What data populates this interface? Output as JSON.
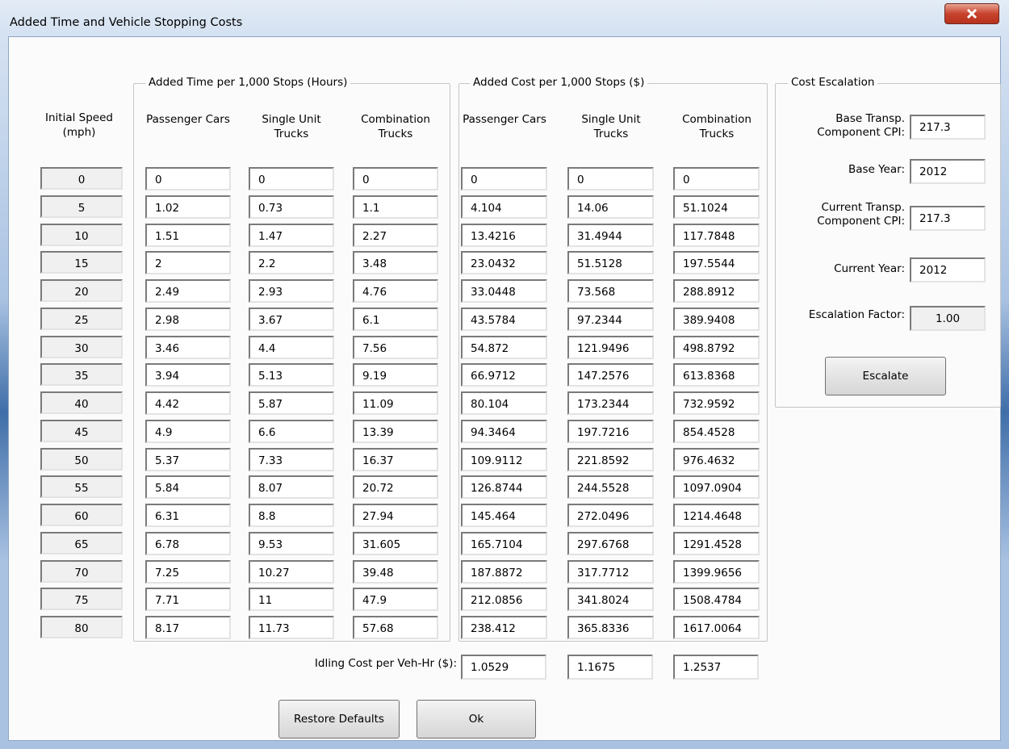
{
  "window": {
    "title": "Added Time and Vehicle Stopping Costs"
  },
  "speed_header": "Initial Speed (mph)",
  "time_group": {
    "label": "Added Time per 1,000 Stops (Hours)",
    "columns": [
      "Passenger Cars",
      "Single Unit Trucks",
      "Combination Trucks"
    ]
  },
  "cost_group": {
    "label": "Added Cost per 1,000 Stops ($)",
    "columns": [
      "Passenger Cars",
      "Single Unit Trucks",
      "Combination Trucks"
    ]
  },
  "rows": [
    {
      "speed": "0",
      "time": [
        "0",
        "0",
        "0"
      ],
      "cost": [
        "0",
        "0",
        "0"
      ]
    },
    {
      "speed": "5",
      "time": [
        "1.02",
        "0.73",
        "1.1"
      ],
      "cost": [
        "4.104",
        "14.06",
        "51.1024"
      ]
    },
    {
      "speed": "10",
      "time": [
        "1.51",
        "1.47",
        "2.27"
      ],
      "cost": [
        "13.4216",
        "31.4944",
        "117.7848"
      ]
    },
    {
      "speed": "15",
      "time": [
        "2",
        "2.2",
        "3.48"
      ],
      "cost": [
        "23.0432",
        "51.5128",
        "197.5544"
      ]
    },
    {
      "speed": "20",
      "time": [
        "2.49",
        "2.93",
        "4.76"
      ],
      "cost": [
        "33.0448",
        "73.568",
        "288.8912"
      ]
    },
    {
      "speed": "25",
      "time": [
        "2.98",
        "3.67",
        "6.1"
      ],
      "cost": [
        "43.5784",
        "97.2344",
        "389.9408"
      ]
    },
    {
      "speed": "30",
      "time": [
        "3.46",
        "4.4",
        "7.56"
      ],
      "cost": [
        "54.872",
        "121.9496",
        "498.8792"
      ]
    },
    {
      "speed": "35",
      "time": [
        "3.94",
        "5.13",
        "9.19"
      ],
      "cost": [
        "66.9712",
        "147.2576",
        "613.8368"
      ]
    },
    {
      "speed": "40",
      "time": [
        "4.42",
        "5.87",
        "11.09"
      ],
      "cost": [
        "80.104",
        "173.2344",
        "732.9592"
      ]
    },
    {
      "speed": "45",
      "time": [
        "4.9",
        "6.6",
        "13.39"
      ],
      "cost": [
        "94.3464",
        "197.7216",
        "854.4528"
      ]
    },
    {
      "speed": "50",
      "time": [
        "5.37",
        "7.33",
        "16.37"
      ],
      "cost": [
        "109.9112",
        "221.8592",
        "976.4632"
      ]
    },
    {
      "speed": "55",
      "time": [
        "5.84",
        "8.07",
        "20.72"
      ],
      "cost": [
        "126.8744",
        "244.5528",
        "1097.0904"
      ]
    },
    {
      "speed": "60",
      "time": [
        "6.31",
        "8.8",
        "27.94"
      ],
      "cost": [
        "145.464",
        "272.0496",
        "1214.4648"
      ]
    },
    {
      "speed": "65",
      "time": [
        "6.78",
        "9.53",
        "31.605"
      ],
      "cost": [
        "165.7104",
        "297.6768",
        "1291.4528"
      ]
    },
    {
      "speed": "70",
      "time": [
        "7.25",
        "10.27",
        "39.48"
      ],
      "cost": [
        "187.8872",
        "317.7712",
        "1399.9656"
      ]
    },
    {
      "speed": "75",
      "time": [
        "7.71",
        "11",
        "47.9"
      ],
      "cost": [
        "212.0856",
        "341.8024",
        "1508.4784"
      ]
    },
    {
      "speed": "80",
      "time": [
        "8.17",
        "11.73",
        "57.68"
      ],
      "cost": [
        "238.412",
        "365.8336",
        "1617.0064"
      ]
    }
  ],
  "idling": {
    "label": "Idling Cost per Veh-Hr ($):",
    "values": [
      "1.0529",
      "1.1675",
      "1.2537"
    ]
  },
  "escalation": {
    "label": "Cost Escalation",
    "base_cpi_label": "Base Transp. Component CPI:",
    "base_cpi": "217.3",
    "base_year_label": "Base Year:",
    "base_year": "2012",
    "current_cpi_label": "Current Transp. Component CPI:",
    "current_cpi": "217.3",
    "current_year_label": "Current Year:",
    "current_year": "2012",
    "factor_label": "Escalation Factor:",
    "factor": "1.00",
    "button": "Escalate"
  },
  "buttons": {
    "restore": "Restore Defaults",
    "ok": "Ok"
  }
}
